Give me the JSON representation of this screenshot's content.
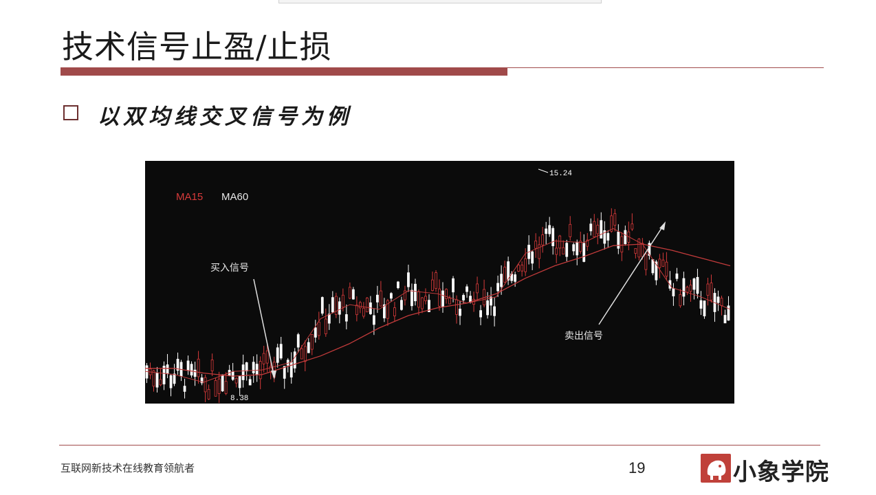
{
  "slide": {
    "title": "技术信号止盈/止损",
    "bullet": "以双均线交叉信号为例",
    "footer": "互联网新技术在线教育领航者",
    "page_number": "19",
    "logo_text": "小象学院"
  },
  "colors": {
    "accent": "#a04a4a",
    "chart_bg": "#0b0b0b",
    "up_candle": "#d83a3a",
    "down_candle": "#ffffff",
    "ma_line": "#c23b3b",
    "logo": "#c0413a"
  },
  "chart_data": {
    "type": "line",
    "title": "",
    "legend": [
      "MA15",
      "MA60"
    ],
    "legend_placement": "top-left",
    "annotations": {
      "low_label": "8.38",
      "high_label": "15.24",
      "buy_signal": "买入信号",
      "sell_signal": "卖出信号"
    },
    "grid": false,
    "ylim": [
      8,
      15.5
    ],
    "x": [
      0,
      5,
      10,
      15,
      20,
      25,
      30,
      35,
      40,
      45,
      50,
      55,
      60,
      65,
      70,
      75,
      80,
      85,
      90,
      95,
      100
    ],
    "series": [
      {
        "name": "MA15",
        "values": [
          8.9,
          8.8,
          8.55,
          8.9,
          8.95,
          9.2,
          10.6,
          11.05,
          10.9,
          11.5,
          11.4,
          11.1,
          11.3,
          12.7,
          13.1,
          13.05,
          13.5,
          13.0,
          11.6,
          11.3,
          10.9
        ]
      },
      {
        "name": "MA60",
        "values": [
          9.0,
          9.0,
          8.85,
          8.75,
          8.8,
          9.1,
          9.4,
          9.8,
          10.3,
          10.7,
          10.95,
          11.1,
          11.4,
          11.9,
          12.3,
          12.6,
          12.95,
          13.0,
          12.8,
          12.55,
          12.3
        ]
      }
    ]
  }
}
